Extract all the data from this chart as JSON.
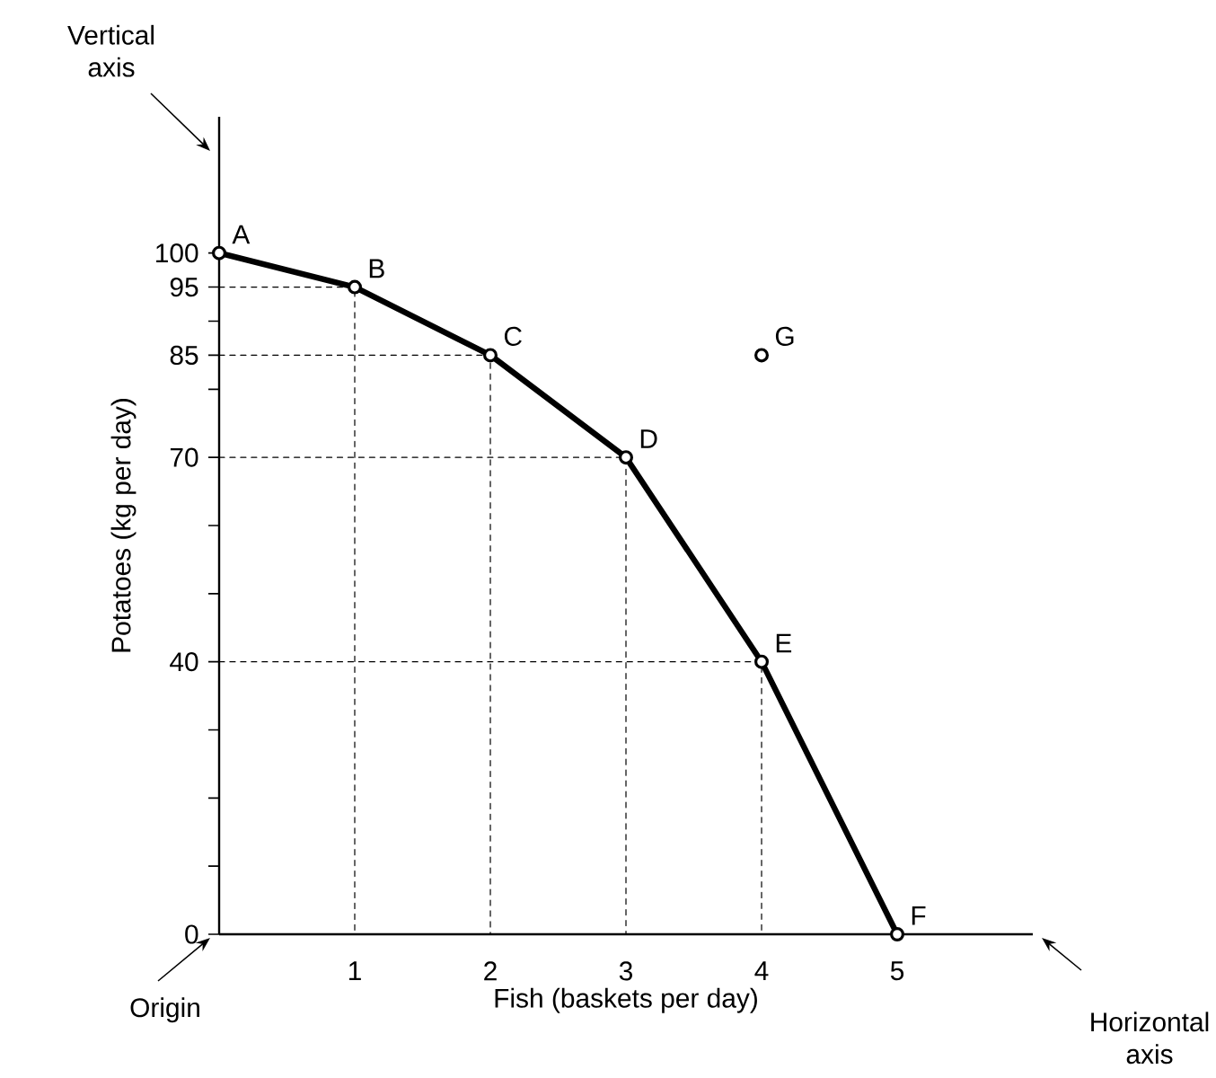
{
  "chart_data": {
    "type": "line",
    "xlabel": "Fish (baskets per day)",
    "ylabel": "Potatoes (kg per day)",
    "x": [
      0,
      1,
      2,
      3,
      4,
      5
    ],
    "xlim": [
      0,
      6
    ],
    "ylim": [
      0,
      120
    ],
    "xticks": [
      1,
      2,
      3,
      4,
      5
    ],
    "yticks": [
      0,
      {
        "value": 10,
        "label": null
      },
      {
        "value": 20,
        "label": null
      },
      {
        "value": 30,
        "label": null
      },
      40,
      {
        "value": 50,
        "label": null
      },
      {
        "value": 60,
        "label": null
      },
      70,
      {
        "value": 80,
        "label": null
      },
      85,
      {
        "value": 90,
        "label": null
      },
      95,
      100
    ],
    "grid": false,
    "series": [
      {
        "color": "#000000",
        "marker": "circle",
        "line_style": "solid",
        "values": [
          100,
          95,
          85,
          70,
          40,
          0
        ]
      },
      {
        "type": "line",
        "color": "#000000",
        "marker": "none",
        "line_style": "dashed",
        "x": [
          0,
          1,
          1
        ],
        "values": [
          95,
          95,
          0
        ]
      },
      {
        "type": "line",
        "color": "#000000",
        "marker": "none",
        "line_style": "dashed",
        "x": [
          0,
          2,
          2
        ],
        "values": [
          85,
          85,
          0
        ]
      },
      {
        "type": "line",
        "color": "#000000",
        "marker": "none",
        "line_style": "dashed",
        "x": [
          0,
          3,
          3
        ],
        "values": [
          70,
          70,
          0
        ]
      },
      {
        "type": "line",
        "color": "#000000",
        "marker": "none",
        "line_style": "dashed",
        "x": [
          0,
          4,
          4
        ],
        "values": [
          40,
          40,
          0
        ]
      },
      {
        "type": "scatter",
        "color": "#000000",
        "marker": "circle",
        "x": [
          4
        ],
        "values": [
          85
        ]
      }
    ],
    "annotations": [
      {
        "text": "A",
        "x": 0,
        "y": 100
      },
      {
        "text": "B",
        "x": 1,
        "y": 95
      },
      {
        "text": "C",
        "x": 2,
        "y": 85
      },
      {
        "text": "D",
        "x": 3,
        "y": 70
      },
      {
        "text": "E",
        "x": 4,
        "y": 40
      },
      {
        "text": "F",
        "x": 5,
        "y": 0
      },
      {
        "text": "G",
        "x": 4,
        "y": 85
      },
      "Vertical axis",
      "Origin",
      "Horizontal axis"
    ]
  }
}
